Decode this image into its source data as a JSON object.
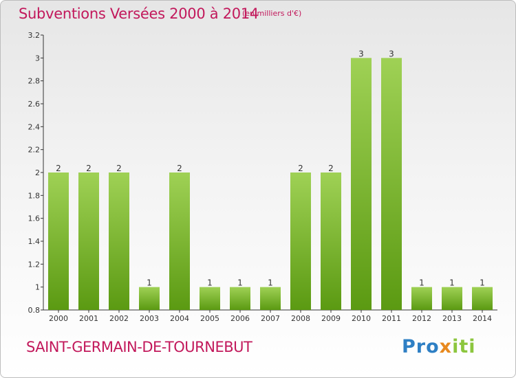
{
  "header": {
    "title": "Subventions Versées 2000 à 2014",
    "unit": "(en milliers d'€)"
  },
  "footer": {
    "commune": "SAINT-GERMAIN-DE-TOURNEBUT",
    "brand": "Proxiti",
    "brand_parts": [
      "Pro",
      "x",
      "iti"
    ]
  },
  "colors": {
    "title": "#c2185b",
    "bar_top": "#9fd155",
    "bar_bottom": "#5b9a12",
    "axis": "#333333",
    "brand_blue": "#2e7fc4",
    "brand_orange": "#e8891e",
    "brand_green": "#8cc63e"
  },
  "chart_data": {
    "type": "bar",
    "title": "Subventions Versées 2000 à 2014",
    "subtitle": "(en milliers d'€)",
    "categories": [
      "2000",
      "2001",
      "2002",
      "2003",
      "2004",
      "2005",
      "2006",
      "2007",
      "2008",
      "2009",
      "2010",
      "2011",
      "2012",
      "2013",
      "2014"
    ],
    "values": [
      2,
      2,
      2,
      1,
      2,
      1,
      1,
      1,
      2,
      2,
      3,
      3,
      1,
      1,
      1
    ],
    "value_labels": [
      "2",
      "2",
      "2",
      "1",
      "2",
      "1",
      "1",
      "1",
      "2",
      "2",
      "3",
      "3",
      "1",
      "1",
      "1"
    ],
    "ylim": [
      0.8,
      3.2
    ],
    "yticks": [
      0.8,
      1,
      1.2,
      1.4,
      1.6,
      1.8,
      2,
      2.2,
      2.4,
      2.6,
      2.8,
      3,
      3.2
    ],
    "ytick_labels": [
      "0.8",
      "1",
      "1.2",
      "1.4",
      "1.6",
      "1.8",
      "2",
      "2.2",
      "2.4",
      "2.6",
      "2.8",
      "3",
      "3.2"
    ],
    "xlabel": "",
    "ylabel": "",
    "grid": false,
    "legend": "none"
  }
}
